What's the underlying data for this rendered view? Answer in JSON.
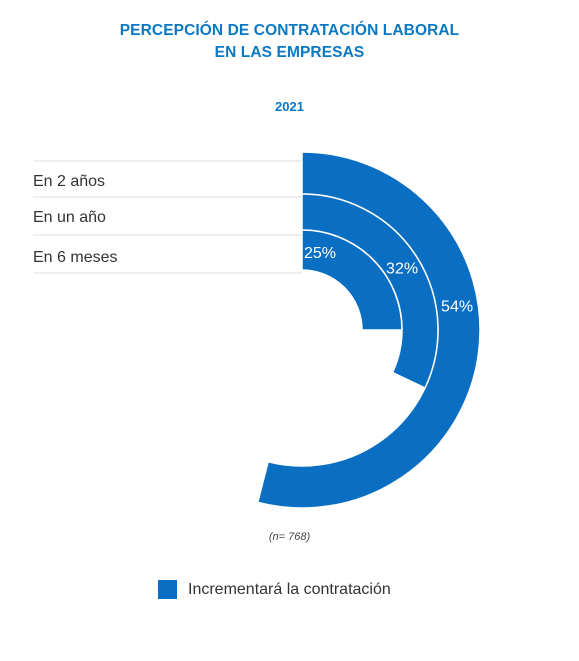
{
  "title": {
    "line1": "PERCEPCIÓN DE CONTRATACIÓN LABORAL",
    "line2": "EN LAS EMPRESAS"
  },
  "subtitle": "2021",
  "note": "(n= 768)",
  "legend": {
    "label": "Incrementará la contratación",
    "color": "#0a6fc2"
  },
  "chart_data": {
    "type": "radial_bar",
    "categories": [
      "En 2 años",
      "En un año",
      "En 6 meses"
    ],
    "series": [
      {
        "name": "Incrementará la contratación",
        "values": [
          54,
          32,
          25
        ],
        "labels": [
          "54%",
          "32%",
          "25%"
        ]
      }
    ],
    "scale_max": 100,
    "colors": {
      "bar": "#0a6fc2",
      "value_text": "#ffffff",
      "divider": "#dddddd"
    }
  }
}
